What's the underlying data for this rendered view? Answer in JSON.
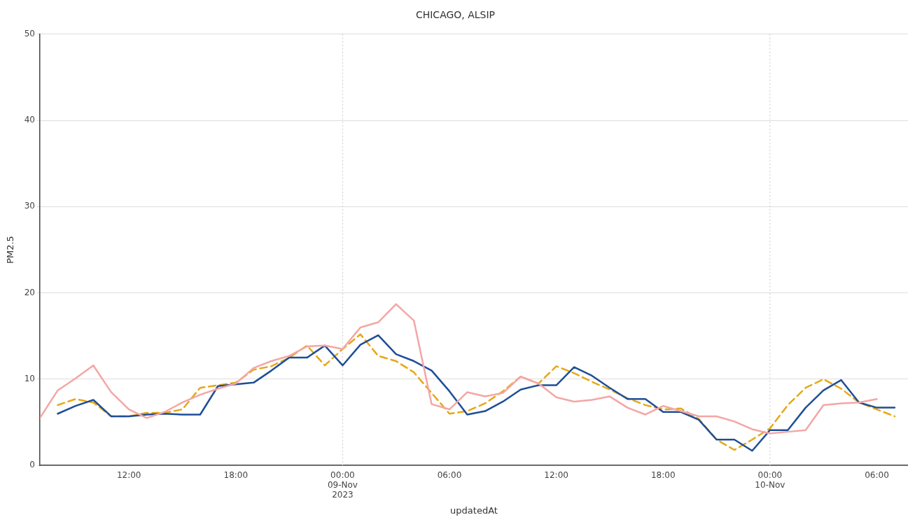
{
  "chart_data": {
    "type": "line",
    "title": "CHICAGO, ALSIP",
    "xlabel": "updatedAt",
    "ylabel": "PM2.5",
    "xlim": [
      "2023-11-08T07:00",
      "2023-11-10T07:45"
    ],
    "xticks": [
      {
        "value": "2023-11-08T12:00",
        "label": "12:00"
      },
      {
        "value": "2023-11-08T18:00",
        "label": "18:00"
      },
      {
        "value": "2023-11-09T00:00",
        "label": "00:00\n09-Nov\n2023"
      },
      {
        "value": "2023-11-09T06:00",
        "label": "06:00"
      },
      {
        "value": "2023-11-09T12:00",
        "label": "12:00"
      },
      {
        "value": "2023-11-09T18:00",
        "label": "18:00"
      },
      {
        "value": "2023-11-10T00:00",
        "label": "00:00\n10-Nov"
      },
      {
        "value": "2023-11-10T06:00",
        "label": "06:00"
      }
    ],
    "ylim": [
      0,
      50
    ],
    "yticks": [
      0,
      10,
      20,
      30,
      40,
      50
    ],
    "grid": "y",
    "legend": false,
    "marker": "none",
    "ref_lines": [
      {
        "axis": "x",
        "value": "2023-11-09T00:00",
        "color": "#c8c8c8",
        "line_style": "dotted"
      },
      {
        "axis": "x",
        "value": "2023-11-10T00:00",
        "color": "#c8c8c8",
        "line_style": "dotted"
      }
    ],
    "series": [
      {
        "color": "#f4a6a6",
        "line_style": "solid",
        "x": [
          "2023-11-08T07:00",
          "2023-11-08T08:00",
          "2023-11-08T09:00",
          "2023-11-08T10:00",
          "2023-11-08T11:00",
          "2023-11-08T12:00",
          "2023-11-08T13:00",
          "2023-11-08T14:00",
          "2023-11-08T15:00",
          "2023-11-08T16:00",
          "2023-11-08T17:00",
          "2023-11-08T18:00",
          "2023-11-08T19:00",
          "2023-11-08T20:00",
          "2023-11-08T21:00",
          "2023-11-08T22:00",
          "2023-11-08T23:00",
          "2023-11-09T00:00",
          "2023-11-09T01:00",
          "2023-11-09T02:00",
          "2023-11-09T03:00",
          "2023-11-09T04:00",
          "2023-11-09T05:00",
          "2023-11-09T06:00",
          "2023-11-09T07:00",
          "2023-11-09T08:00",
          "2023-11-09T09:00",
          "2023-11-09T10:00",
          "2023-11-09T11:00",
          "2023-11-09T12:00",
          "2023-11-09T13:00",
          "2023-11-09T14:00",
          "2023-11-09T15:00",
          "2023-11-09T16:00",
          "2023-11-09T17:00",
          "2023-11-09T18:00",
          "2023-11-09T19:00",
          "2023-11-09T20:00",
          "2023-11-09T21:00",
          "2023-11-09T22:00",
          "2023-11-09T23:00",
          "2023-11-10T00:00",
          "2023-11-10T01:00",
          "2023-11-10T02:00",
          "2023-11-10T03:00",
          "2023-11-10T04:00",
          "2023-11-10T05:00",
          "2023-11-10T06:00"
        ],
        "values": [
          5.5,
          8.7,
          10.1,
          11.6,
          8.5,
          6.5,
          5.5,
          6.2,
          7.3,
          8.2,
          8.9,
          9.5,
          11.3,
          12.1,
          12.7,
          13.8,
          13.9,
          13.5,
          16.0,
          16.6,
          18.7,
          16.8,
          7.1,
          6.5,
          8.5,
          8.0,
          8.4,
          10.3,
          9.5,
          7.9,
          7.4,
          7.6,
          8.0,
          6.7,
          5.9,
          6.9,
          6.3,
          5.7,
          5.7,
          5.1,
          4.2,
          3.7,
          3.9,
          4.1,
          7.0,
          7.2,
          7.3,
          7.7
        ]
      },
      {
        "color": "#1f4e96",
        "line_style": "solid",
        "x": [
          "2023-11-08T08:00",
          "2023-11-08T09:00",
          "2023-11-08T10:00",
          "2023-11-08T11:00",
          "2023-11-08T12:00",
          "2023-11-08T13:00",
          "2023-11-08T14:00",
          "2023-11-08T15:00",
          "2023-11-08T16:00",
          "2023-11-08T17:00",
          "2023-11-08T18:00",
          "2023-11-08T19:00",
          "2023-11-08T20:00",
          "2023-11-08T21:00",
          "2023-11-08T22:00",
          "2023-11-08T23:00",
          "2023-11-09T00:00",
          "2023-11-09T01:00",
          "2023-11-09T02:00",
          "2023-11-09T03:00",
          "2023-11-09T04:00",
          "2023-11-09T05:00",
          "2023-11-09T06:00",
          "2023-11-09T07:00",
          "2023-11-09T08:00",
          "2023-11-09T09:00",
          "2023-11-09T10:00",
          "2023-11-09T11:00",
          "2023-11-09T12:00",
          "2023-11-09T13:00",
          "2023-11-09T14:00",
          "2023-11-09T15:00",
          "2023-11-09T16:00",
          "2023-11-09T17:00",
          "2023-11-09T18:00",
          "2023-11-09T19:00",
          "2023-11-09T20:00",
          "2023-11-09T21:00",
          "2023-11-09T22:00",
          "2023-11-09T23:00",
          "2023-11-10T00:00",
          "2023-11-10T01:00",
          "2023-11-10T02:00",
          "2023-11-10T03:00",
          "2023-11-10T04:00",
          "2023-11-10T05:00",
          "2023-11-10T06:00",
          "2023-11-10T07:00"
        ],
        "values": [
          6.0,
          6.9,
          7.6,
          5.7,
          5.7,
          5.9,
          6.0,
          5.9,
          5.9,
          9.2,
          9.4,
          9.6,
          11.0,
          12.5,
          12.5,
          13.9,
          11.6,
          14.0,
          15.1,
          12.9,
          12.1,
          11.0,
          8.6,
          5.9,
          6.3,
          7.4,
          8.8,
          9.3,
          9.3,
          11.4,
          10.4,
          9.0,
          7.7,
          7.7,
          6.2,
          6.2,
          5.3,
          3.0,
          3.0,
          1.7,
          4.1,
          4.1,
          6.7,
          8.7,
          9.9,
          7.3,
          6.7,
          6.7
        ]
      },
      {
        "color": "#e6a817",
        "line_style": "dashed",
        "x": [
          "2023-11-08T08:00",
          "2023-11-08T09:00",
          "2023-11-08T10:00",
          "2023-11-08T11:00",
          "2023-11-08T12:00",
          "2023-11-08T13:00",
          "2023-11-08T14:00",
          "2023-11-08T15:00",
          "2023-11-08T16:00",
          "2023-11-08T17:00",
          "2023-11-08T18:00",
          "2023-11-08T19:00",
          "2023-11-08T20:00",
          "2023-11-08T21:00",
          "2023-11-08T22:00",
          "2023-11-08T23:00",
          "2023-11-09T00:00",
          "2023-11-09T01:00",
          "2023-11-09T02:00",
          "2023-11-09T03:00",
          "2023-11-09T04:00",
          "2023-11-09T05:00",
          "2023-11-09T06:00",
          "2023-11-09T07:00",
          "2023-11-09T08:00",
          "2023-11-09T09:00",
          "2023-11-09T10:00",
          "2023-11-09T11:00",
          "2023-11-09T12:00",
          "2023-11-09T13:00",
          "2023-11-09T14:00",
          "2023-11-09T15:00",
          "2023-11-09T16:00",
          "2023-11-09T17:00",
          "2023-11-09T18:00",
          "2023-11-09T19:00",
          "2023-11-09T20:00",
          "2023-11-09T21:00",
          "2023-11-09T22:00",
          "2023-11-09T23:00",
          "2023-11-10T00:00",
          "2023-11-10T01:00",
          "2023-11-10T02:00",
          "2023-11-10T03:00",
          "2023-11-10T04:00",
          "2023-11-10T05:00",
          "2023-11-10T06:00",
          "2023-11-10T07:00"
        ],
        "values": [
          7.0,
          7.7,
          7.3,
          5.7,
          5.7,
          6.1,
          6.1,
          6.5,
          9.0,
          9.3,
          9.6,
          11.1,
          11.5,
          12.5,
          13.9,
          11.6,
          13.5,
          15.2,
          12.7,
          12.1,
          10.8,
          8.4,
          6.0,
          6.3,
          7.2,
          8.6,
          10.3,
          9.5,
          11.5,
          10.7,
          9.7,
          8.8,
          7.8,
          7.0,
          6.5,
          6.6,
          5.4,
          3.0,
          1.8,
          3.0,
          4.3,
          7.0,
          9.0,
          10.0,
          8.9,
          7.3,
          6.5,
          5.7
        ]
      }
    ]
  }
}
